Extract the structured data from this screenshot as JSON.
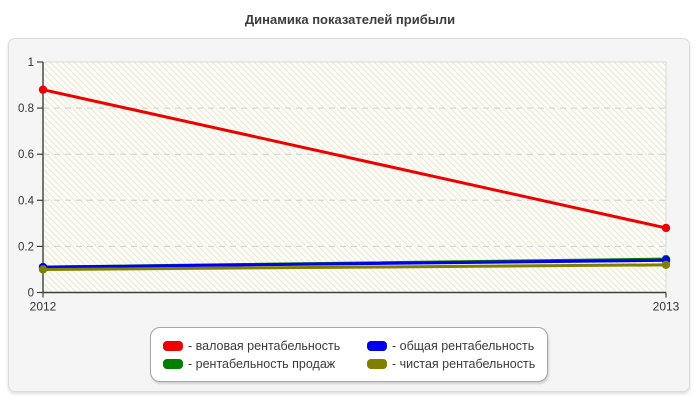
{
  "title": "Динамика показателей прибыли",
  "chart_data": {
    "type": "line",
    "title": "Динамика показателей прибыли",
    "categories": [
      "2012",
      "2013"
    ],
    "series": [
      {
        "name": "валовая рентабельность",
        "color": "#ee0000",
        "values": [
          0.88,
          0.28
        ]
      },
      {
        "name": "рентабельность продаж",
        "color": "#008000",
        "values": [
          0.11,
          0.145
        ]
      },
      {
        "name": "общая рентабельность",
        "color": "#0000ee",
        "values": [
          0.11,
          0.14
        ]
      },
      {
        "name": "чистая рентабельность",
        "color": "#808000",
        "values": [
          0.1,
          0.12
        ]
      }
    ],
    "xlabel": "",
    "ylabel": "",
    "ylim": [
      0,
      1
    ],
    "yticks": [
      0,
      0.2,
      0.4,
      0.6,
      0.8,
      1
    ],
    "ytick_labels": [
      "0",
      "0.2",
      "0.4",
      "0.6",
      "0.8",
      "1"
    ],
    "grid": "horizontal-dashed",
    "plot_background": "#fcfcf5",
    "hatch_color": "#e9e9de",
    "grid_color": "#cfcfcf",
    "axis_color": "#3f3f3f",
    "legend_position": "bottom-center"
  },
  "legend": {
    "items": [
      {
        "label": "- валовая рентабельность",
        "color": "#ee0000"
      },
      {
        "label": "- общая рентабельность",
        "color": "#0000ee"
      },
      {
        "label": "- рентабельность продаж",
        "color": "#008000"
      },
      {
        "label": "- чистая рентабельность",
        "color": "#808000"
      }
    ]
  }
}
